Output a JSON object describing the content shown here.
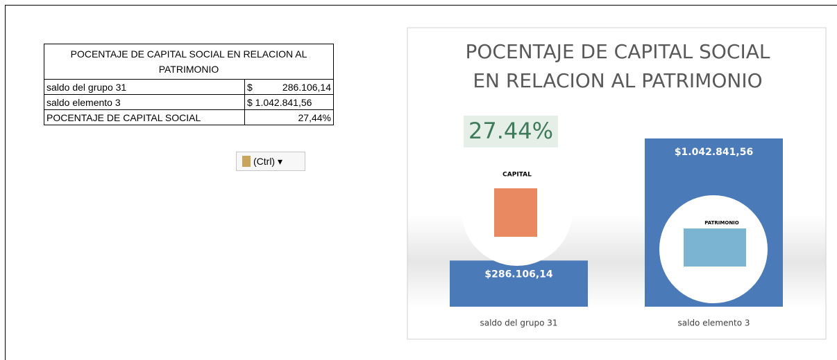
{
  "table": {
    "title": "POCENTAJE DE CAPITAL SOCIAL EN RELACION AL PATRIMONIO",
    "rows": [
      [
        "saldo del grupo 31",
        "$",
        "286.106,14"
      ],
      [
        "saldo elemento 3",
        "$ 1.042.841,56"
      ],
      [
        "POCENTAJE DE CAPITAL SOCIAL",
        "27,44%"
      ]
    ]
  },
  "paste_button": "(Ctrl)",
  "chart_data": {
    "type": "bar",
    "title": "POCENTAJE DE CAPITAL SOCIAL EN RELACION AL PATRIMONIO",
    "categories": [
      "saldo del grupo 31",
      "saldo elemento 3"
    ],
    "values": [
      286106.14,
      1042841.56
    ],
    "value_labels": [
      "$286.106,14",
      "$1.042.841,56"
    ],
    "color": "#4a7ab8",
    "annotation": "27.44%",
    "image_labels": [
      "CAPITAL",
      "PATRIMONIO"
    ]
  }
}
